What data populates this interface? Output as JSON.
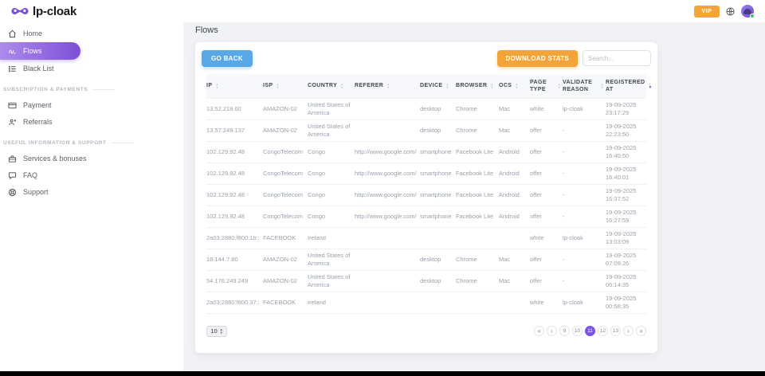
{
  "header": {
    "logo_text": "lp-cloak",
    "vip_label": "VIP"
  },
  "sidebar": {
    "sections": [
      {
        "title": "",
        "items": [
          {
            "label": "Home",
            "icon": "home-icon",
            "active": false
          },
          {
            "label": "Flows",
            "icon": "flows-icon",
            "active": true
          },
          {
            "label": "Black List",
            "icon": "blacklist-icon",
            "active": false
          }
        ]
      },
      {
        "title": "Subscription & payments",
        "items": [
          {
            "label": "Payment",
            "icon": "payment-icon",
            "active": false
          },
          {
            "label": "Referrals",
            "icon": "referrals-icon",
            "active": false
          }
        ]
      },
      {
        "title": "Useful information & support",
        "items": [
          {
            "label": "Services & bonuses",
            "icon": "services-icon",
            "active": false
          },
          {
            "label": "FAQ",
            "icon": "faq-icon",
            "active": false
          },
          {
            "label": "Support",
            "icon": "support-icon",
            "active": false
          }
        ]
      }
    ]
  },
  "main": {
    "page_title": "Flows",
    "toolbar": {
      "go_back": "GO BACK",
      "download_stats": "DOWNLOAD STATS",
      "search_placeholder": "Search..."
    },
    "table": {
      "columns": [
        {
          "label": "IP",
          "key": "ip",
          "sorted": false
        },
        {
          "label": "ISP",
          "key": "isp",
          "sorted": false
        },
        {
          "label": "Country",
          "key": "country",
          "sorted": false
        },
        {
          "label": "Referer",
          "key": "referer",
          "sorted": false
        },
        {
          "label": "Device",
          "key": "device",
          "sorted": false
        },
        {
          "label": "Browser",
          "key": "browser",
          "sorted": false
        },
        {
          "label": "OCS",
          "key": "ocs",
          "sorted": false
        },
        {
          "label": "Page Type",
          "key": "page_type",
          "sorted": false
        },
        {
          "label": "Validate Reason",
          "key": "validate_reason",
          "sorted": false
        },
        {
          "label": "Registered At",
          "key": "registered_at",
          "sorted": true
        }
      ],
      "rows": [
        {
          "ip": "13.52.218.60",
          "isp": "AMAZON-02",
          "country": "United States of America",
          "referer": "",
          "device": "desktop",
          "browser": "Chrome",
          "ocs": "Mac",
          "page_type": "white",
          "validate_reason": "lp-cloak",
          "registered_at": "19-09-2025 23:17:29"
        },
        {
          "ip": "13.57.249.137",
          "isp": "AMAZON-02",
          "country": "United States of America",
          "referer": "",
          "device": "desktop",
          "browser": "Chrome",
          "ocs": "Mac",
          "page_type": "offer",
          "validate_reason": "-",
          "registered_at": "19-09-2025 22:23:50"
        },
        {
          "ip": "102.129.92.48",
          "isp": "CongoTelecom",
          "country": "Congo",
          "referer": "http://www.google.com/",
          "device": "smartphone",
          "browser": "Facebook Lite",
          "ocs": "Android",
          "page_type": "offer",
          "validate_reason": "-",
          "registered_at": "19-09-2025 16:40:50"
        },
        {
          "ip": "102.129.92.48",
          "isp": "CongoTelecom",
          "country": "Congo",
          "referer": "http://www.google.com/",
          "device": "smartphone",
          "browser": "Facebook Lite",
          "ocs": "Android",
          "page_type": "offer",
          "validate_reason": "-",
          "registered_at": "19-09-2025 16:40:01"
        },
        {
          "ip": "102.129.92.48",
          "isp": "CongoTelecom",
          "country": "Congo",
          "referer": "http://www.google.com/",
          "device": "smartphone",
          "browser": "Facebook Lite",
          "ocs": "Android",
          "page_type": "offer",
          "validate_reason": "-",
          "registered_at": "19-09-2025 16:37:52"
        },
        {
          "ip": "102.129.92.48",
          "isp": "CongoTelecom",
          "country": "Congo",
          "referer": "http://www.google.com/",
          "device": "smartphone",
          "browser": "Facebook Lite",
          "ocs": "Android",
          "page_type": "offer",
          "validate_reason": "-",
          "registered_at": "19-09-2025 16:27:59"
        },
        {
          "ip": "2a03:2880:f800:1b::",
          "isp": "FACEBOOK",
          "country": "Ireland",
          "referer": "",
          "device": "",
          "browser": "",
          "ocs": "",
          "page_type": "white",
          "validate_reason": "lp-cloak",
          "registered_at": "19-09-2025 13:03:09"
        },
        {
          "ip": "18.144.7.80",
          "isp": "AMAZON-02",
          "country": "United States of America",
          "referer": "",
          "device": "desktop",
          "browser": "Chrome",
          "ocs": "Mac",
          "page_type": "offer",
          "validate_reason": "-",
          "registered_at": "19-09-2025 07:09:26"
        },
        {
          "ip": "54.176.249.249",
          "isp": "AMAZON-02",
          "country": "United States of America",
          "referer": "",
          "device": "desktop",
          "browser": "Chrome",
          "ocs": "Mac",
          "page_type": "offer",
          "validate_reason": "-",
          "registered_at": "19-09-2025 06:14:35"
        },
        {
          "ip": "2a03:2880:f800:37::",
          "isp": "FACEBOOK",
          "country": "Ireland",
          "referer": "",
          "device": "",
          "browser": "",
          "ocs": "",
          "page_type": "white",
          "validate_reason": "lp-cloak",
          "registered_at": "19-09-2025 00:58:35"
        }
      ]
    },
    "pagination": {
      "page_size": "10",
      "first_label": "«",
      "prev_label": "‹",
      "next_label": "›",
      "last_label": "»",
      "pages": [
        "9",
        "10",
        "11",
        "12",
        "13"
      ],
      "active_page": "11"
    }
  },
  "colors": {
    "accent_purple": "#7c52e8",
    "sidebar_gradient_start": "#ab8cec",
    "sidebar_gradient_end": "#7d4fd8",
    "button_blue": "#58a8e8",
    "button_orange": "#f3a439",
    "status_green": "#43c463",
    "page_background": "#f1f2f6"
  }
}
